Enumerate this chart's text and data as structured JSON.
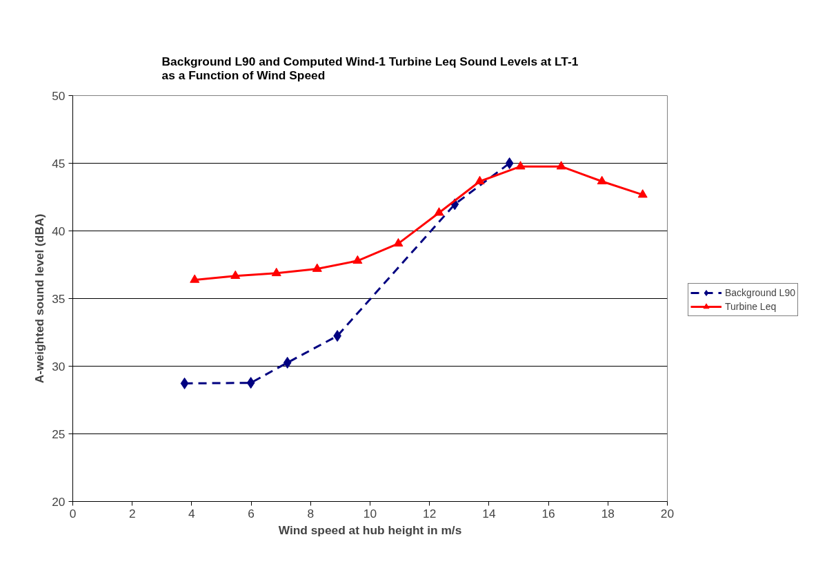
{
  "chart_data": {
    "type": "line",
    "title": "Background L90 and Computed Wind-1 Turbine Leq Sound Levels at LT-1\nas a Function of Wind Speed",
    "xlabel": "Wind speed at hub height in m/s",
    "ylabel": "A-weighted sound level (dBA)",
    "xlim": [
      0,
      20
    ],
    "xticks": [
      0,
      2,
      4,
      6,
      8,
      10,
      12,
      14,
      16,
      18,
      20
    ],
    "ylim": [
      20,
      50
    ],
    "yticks": [
      20,
      25,
      30,
      35,
      40,
      45,
      50
    ],
    "grid": "y",
    "legend": "right",
    "series": [
      {
        "name": "Background L90",
        "color": "#000080",
        "marker": "diamond",
        "line_style": "dashed",
        "x": [
          3.76,
          5.99,
          7.22,
          8.9,
          12.85,
          14.69
        ],
        "values": [
          28.73,
          28.77,
          30.26,
          32.24,
          41.97,
          45.0
        ]
      },
      {
        "name": "Turbine Leq",
        "color": "#ff0000",
        "marker": "triangle",
        "line_style": "solid",
        "x": [
          4.1,
          5.47,
          6.85,
          8.22,
          9.58,
          10.95,
          12.32,
          13.69,
          15.06,
          16.43,
          17.8,
          19.17
        ],
        "values": [
          36.38,
          36.67,
          36.87,
          37.19,
          37.79,
          39.06,
          41.34,
          43.66,
          44.76,
          44.76,
          43.66,
          42.67
        ]
      }
    ]
  }
}
